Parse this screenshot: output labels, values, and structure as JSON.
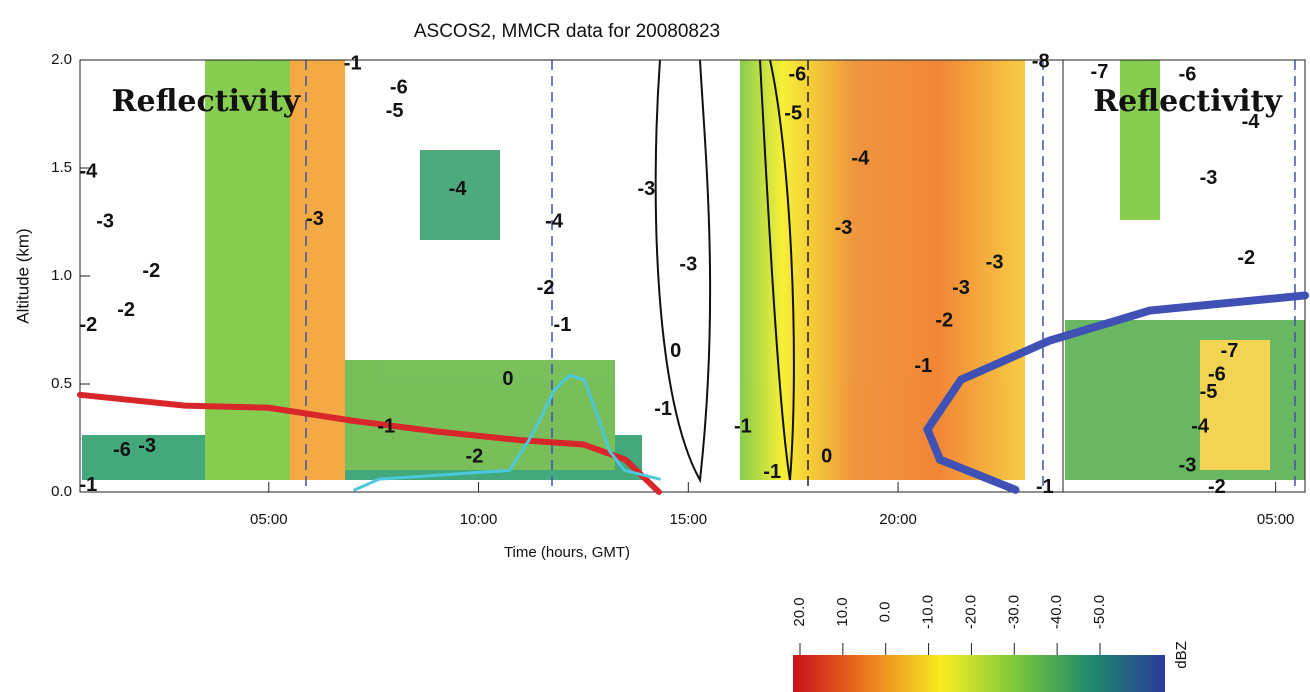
{
  "chart_data": {
    "type": "line",
    "title": "ASCOS2, MMCR data for 20080823",
    "xlabel": "Time (hours, GMT)",
    "ylabel": "Altitude (km)",
    "xlim": [
      0.5,
      29.7
    ],
    "ylim": [
      0,
      2
    ],
    "xticks": [
      {
        "value": 5,
        "label": "05:00"
      },
      {
        "value": 10,
        "label": "10:00"
      },
      {
        "value": 15,
        "label": "15:00"
      },
      {
        "value": 20,
        "label": "20:00"
      },
      {
        "value": 29,
        "label": "05:00"
      }
    ],
    "yticks": [
      {
        "value": 0,
        "label": "0.0"
      },
      {
        "value": 0.5,
        "label": "0.5"
      },
      {
        "value": 1,
        "label": "1.0"
      },
      {
        "value": 1.5,
        "label": "1.5"
      },
      {
        "value": 2,
        "label": "2.0"
      }
    ],
    "series": [
      {
        "color": "#d8262a",
        "x": [
          0.5,
          3,
          5,
          7,
          9,
          11,
          12.5,
          13.5,
          14.3
        ],
        "values": [
          0.45,
          0.4,
          0.39,
          0.33,
          0.28,
          0.24,
          0.22,
          0.15,
          0.0
        ]
      },
      {
        "color": "#3f51b5",
        "x": [
          22.8,
          21.0,
          20.7,
          21.5,
          23.6,
          26.0,
          29.7
        ],
        "values": [
          0.01,
          0.15,
          0.29,
          0.52,
          0.7,
          0.84,
          0.91
        ]
      },
      {
        "color": "#4cc8dc",
        "x": [
          7.05,
          7.64,
          10.74,
          11.2,
          11.45,
          11.8,
          12.17,
          12.52,
          12.88,
          13.12,
          13.48,
          14.31
        ],
        "values": [
          0.01,
          0.06,
          0.1,
          0.24,
          0.33,
          0.47,
          0.54,
          0.52,
          0.33,
          0.19,
          0.1,
          0.06
        ]
      }
    ],
    "annotations": [
      {
        "text": "Reflectivity",
        "x": 3.5,
        "y": 1.8
      },
      {
        "text": "Reflectivity",
        "x": 26.9,
        "y": 1.8
      },
      {
        "text": "-6",
        "x": 8.1,
        "y": 1.87
      },
      {
        "text": "-5",
        "x": 8.0,
        "y": 1.76
      },
      {
        "text": "-6",
        "x": 17.6,
        "y": 1.93
      },
      {
        "text": "-5",
        "x": 17.5,
        "y": 1.75
      },
      {
        "text": "-6",
        "x": 26.9,
        "y": 1.93
      },
      {
        "text": "-4",
        "x": 28.4,
        "y": 1.71
      },
      {
        "text": "-7",
        "x": 24.8,
        "y": 1.94
      },
      {
        "text": "-8",
        "x": 23.4,
        "y": 1.99
      },
      {
        "text": "-1",
        "x": 7.0,
        "y": 1.98
      },
      {
        "text": "-4",
        "x": 0.7,
        "y": 1.48
      },
      {
        "text": "-3",
        "x": 1.1,
        "y": 1.25
      },
      {
        "text": "-3",
        "x": 6.1,
        "y": 1.26
      },
      {
        "text": "-4",
        "x": 9.5,
        "y": 1.4
      },
      {
        "text": "-4",
        "x": 11.8,
        "y": 1.25
      },
      {
        "text": "-3",
        "x": 14.0,
        "y": 1.4
      },
      {
        "text": "-4",
        "x": 19.1,
        "y": 1.54
      },
      {
        "text": "-3",
        "x": 18.7,
        "y": 1.22
      },
      {
        "text": "-3",
        "x": 27.4,
        "y": 1.45
      },
      {
        "text": "-2",
        "x": 2.2,
        "y": 1.02
      },
      {
        "text": "-2",
        "x": 11.6,
        "y": 0.94
      },
      {
        "text": "-3",
        "x": 15.0,
        "y": 1.05
      },
      {
        "text": "-3",
        "x": 22.3,
        "y": 1.06
      },
      {
        "text": "-3",
        "x": 21.5,
        "y": 0.94
      },
      {
        "text": "-2",
        "x": 21.1,
        "y": 0.79
      },
      {
        "text": "-2",
        "x": 28.3,
        "y": 1.08
      },
      {
        "text": "-1",
        "x": 12.0,
        "y": 0.77
      },
      {
        "text": "0",
        "x": 14.7,
        "y": 0.65
      },
      {
        "text": "0",
        "x": 10.7,
        "y": 0.52
      },
      {
        "text": "-1",
        "x": 20.6,
        "y": 0.58
      },
      {
        "text": "-1",
        "x": 7.8,
        "y": 0.3
      },
      {
        "text": "-1",
        "x": 14.4,
        "y": 0.38
      },
      {
        "text": "-1",
        "x": 16.3,
        "y": 0.3
      },
      {
        "text": "-2",
        "x": 9.9,
        "y": 0.16
      },
      {
        "text": "0",
        "x": 18.3,
        "y": 0.16
      },
      {
        "text": "-1",
        "x": 17.0,
        "y": 0.09
      },
      {
        "text": "-7",
        "x": 27.9,
        "y": 0.65
      },
      {
        "text": "-6",
        "x": 27.6,
        "y": 0.54
      },
      {
        "text": "-5",
        "x": 27.4,
        "y": 0.46
      },
      {
        "text": "-4",
        "x": 27.2,
        "y": 0.3
      },
      {
        "text": "-3",
        "x": 26.9,
        "y": 0.12
      },
      {
        "text": "-2",
        "x": 27.6,
        "y": 0.02
      },
      {
        "text": "-1",
        "x": 23.5,
        "y": 0.02
      },
      {
        "text": "-2",
        "x": 1.6,
        "y": 0.84
      },
      {
        "text": "-2",
        "x": 0.7,
        "y": 0.77
      },
      {
        "text": "-3",
        "x": 2.1,
        "y": 0.21
      },
      {
        "text": "-6",
        "x": 1.5,
        "y": 0.19
      },
      {
        "text": "-1",
        "x": 0.7,
        "y": 0.03
      }
    ],
    "colorbar": {
      "clim": [
        20,
        -50
      ],
      "label": "dBZ",
      "colors": [
        "#c8101a",
        "#ee7a1e",
        "#f6ee20",
        "#7ac83c",
        "#1e8a6a",
        "#2a3a9c"
      ],
      "ticks": [
        {
          "value": 20,
          "label": "20.0"
        },
        {
          "value": 10,
          "label": "10.0"
        },
        {
          "value": 0,
          "label": "0.0"
        },
        {
          "value": -10,
          "label": "-10.0"
        },
        {
          "value": -20,
          "label": "-20.0"
        },
        {
          "value": -30,
          "label": "-30.0"
        },
        {
          "value": -40,
          "label": "-40.0"
        },
        {
          "value": -50,
          "label": "-50.0"
        }
      ]
    }
  }
}
